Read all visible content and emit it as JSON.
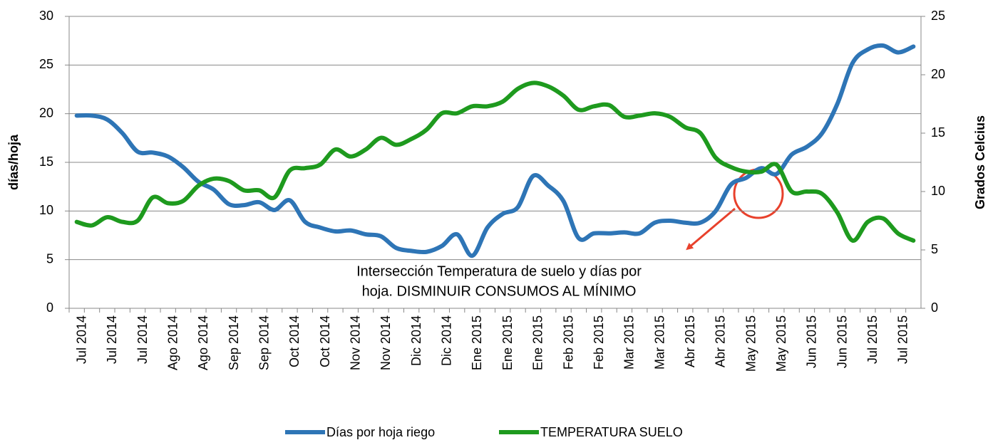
{
  "chart_data": {
    "type": "line",
    "categories": [
      "Jul 2014",
      null,
      "Jul 2014",
      null,
      "Jul 2014",
      null,
      "Ago 2014",
      null,
      "Ago 2014",
      null,
      "Sep 2014",
      null,
      "Sep 2014",
      null,
      "Oct 2014",
      null,
      "Oct 2014",
      null,
      "Nov 2014",
      null,
      "Nov 2014",
      null,
      "Dic 2014",
      null,
      "Dic 2014",
      null,
      "Ene 2015",
      null,
      "Ene 2015",
      null,
      "Ene 2015",
      null,
      "Feb 2015",
      null,
      "Feb 2015",
      null,
      "Mar 2015",
      null,
      "Mar 2015",
      null,
      "Abr 2015",
      null,
      "Abr 2015",
      null,
      "May 2015",
      null,
      "May 2015",
      null,
      "Jun 2015",
      null,
      "Jun 2015",
      null,
      "Jul 2015",
      null,
      "Jul 2015",
      null
    ],
    "series": [
      {
        "name": "Días por hoja riego",
        "color": "#2e75b6",
        "axis": "y",
        "values": [
          19.8,
          19.8,
          19.4,
          18,
          16.1,
          16,
          15.6,
          14.5,
          13,
          12.2,
          10.7,
          10.6,
          10.9,
          10.1,
          11.1,
          8.9,
          8.3,
          7.9,
          8,
          7.6,
          7.4,
          6.2,
          5.9,
          5.8,
          6.4,
          7.6,
          5.4,
          8.3,
          9.7,
          10.4,
          13.6,
          12.6,
          11,
          7.2,
          7.7,
          7.7,
          7.8,
          7.7,
          8.8,
          9,
          8.8,
          8.8,
          10,
          12.7,
          13.4,
          14.4,
          13.8,
          15.8,
          16.6,
          18,
          21,
          25.2,
          26.6,
          27,
          26.3,
          26.9
        ]
      },
      {
        "name": "TEMPERATURA SUELO",
        "color": "#1e9a1e",
        "axis": "y2",
        "values": [
          7.4,
          7.1,
          7.8,
          7.4,
          7.5,
          9.5,
          9,
          9.2,
          10.5,
          11.1,
          10.9,
          10.1,
          10.1,
          9.5,
          11.8,
          12,
          12.3,
          13.6,
          13,
          13.6,
          14.6,
          14,
          14.5,
          15.3,
          16.7,
          16.7,
          17.3,
          17.3,
          17.7,
          18.8,
          19.3,
          19,
          18.2,
          17,
          17.3,
          17.4,
          16.4,
          16.5,
          16.7,
          16.4,
          15.5,
          15,
          12.9,
          12.1,
          11.7,
          11.7,
          12.3,
          10,
          10,
          9.8,
          8.2,
          5.8,
          7.4,
          7.7,
          6.4,
          5.8
        ]
      }
    ],
    "ylabel": "días/hoja",
    "y2label": "Grados Celcius",
    "ylim": [
      0,
      30
    ],
    "yticks": [
      0,
      5,
      10,
      15,
      20,
      25,
      30
    ],
    "y2lim": [
      0,
      25
    ],
    "y2ticks": [
      0,
      5,
      10,
      15,
      20,
      25
    ],
    "grid": true,
    "legend": "bottom",
    "annotations": [
      "Intersección Temperatura de suelo y días por",
      "hoja. DISMINUIR CONSUMOS AL MÍNIMO"
    ]
  }
}
